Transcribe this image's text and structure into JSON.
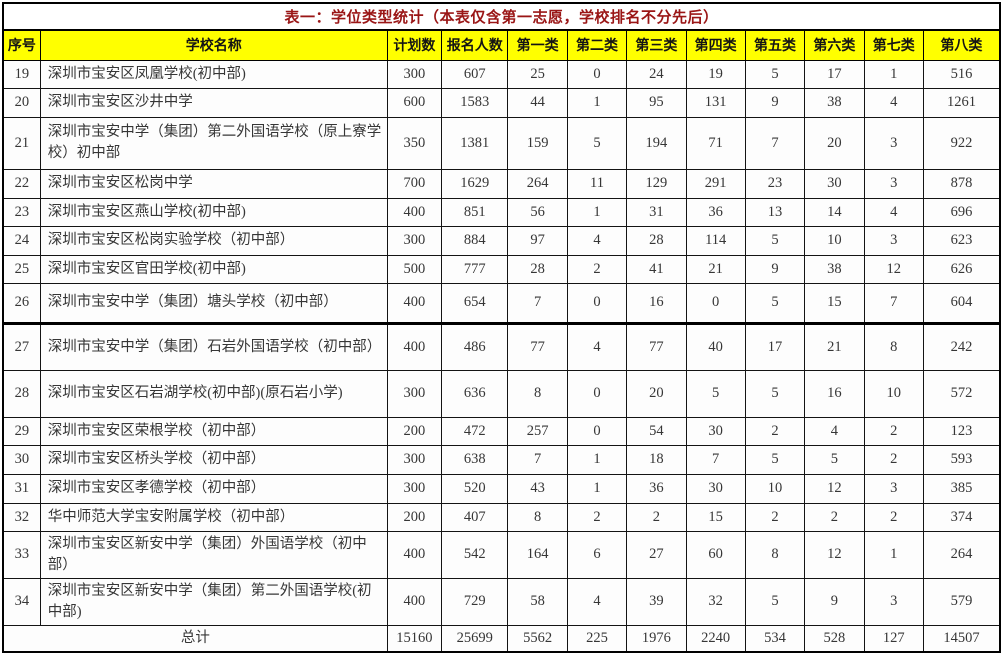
{
  "title": "表一：学位类型统计（本表仅含第一志愿，学校排名不分先后）",
  "columns": [
    "序号",
    "学校名称",
    "计划数",
    "报名人数",
    "第一类",
    "第二类",
    "第三类",
    "第四类",
    "第五类",
    "第六类",
    "第七类",
    "第八类"
  ],
  "colors": {
    "header_bg": "#ffff00",
    "title_text": "#9a1616",
    "border": "#000000",
    "cell_text": "#363636"
  },
  "rows": [
    {
      "no": "19",
      "school": "深圳市宝安区凤凰学校(初中部)",
      "plan": "300",
      "applicants": "607",
      "cats": [
        "25",
        "0",
        "24",
        "19",
        "5",
        "17",
        "1",
        "516"
      ]
    },
    {
      "no": "20",
      "school": "深圳市宝安区沙井中学",
      "plan": "600",
      "applicants": "1583",
      "cats": [
        "44",
        "1",
        "95",
        "131",
        "9",
        "38",
        "4",
        "1261"
      ]
    },
    {
      "no": "21",
      "school": "深圳市宝安中学（集团）第二外国语学校（原上寮学校）初中部",
      "plan": "350",
      "applicants": "1381",
      "cats": [
        "159",
        "5",
        "194",
        "71",
        "7",
        "20",
        "3",
        "922"
      ]
    },
    {
      "no": "22",
      "school": "深圳市宝安区松岗中学",
      "plan": "700",
      "applicants": "1629",
      "cats": [
        "264",
        "11",
        "129",
        "291",
        "23",
        "30",
        "3",
        "878"
      ]
    },
    {
      "no": "23",
      "school": "深圳市宝安区燕山学校(初中部)",
      "plan": "400",
      "applicants": "851",
      "cats": [
        "56",
        "1",
        "31",
        "36",
        "13",
        "14",
        "4",
        "696"
      ]
    },
    {
      "no": "24",
      "school": "深圳市宝安区松岗实验学校（初中部）",
      "plan": "300",
      "applicants": "884",
      "cats": [
        "97",
        "4",
        "28",
        "114",
        "5",
        "10",
        "3",
        "623"
      ]
    },
    {
      "no": "25",
      "school": "深圳市宝安区官田学校(初中部)",
      "plan": "500",
      "applicants": "777",
      "cats": [
        "28",
        "2",
        "41",
        "21",
        "9",
        "38",
        "12",
        "626"
      ]
    },
    {
      "no": "26",
      "school": "深圳市宝安中学（集团）塘头学校（初中部）",
      "plan": "400",
      "applicants": "654",
      "cats": [
        "7",
        "0",
        "16",
        "0",
        "5",
        "15",
        "7",
        "604"
      ]
    },
    {
      "no": "27",
      "school": "深圳市宝安中学（集团）石岩外国语学校（初中部）",
      "plan": "400",
      "applicants": "486",
      "cats": [
        "77",
        "4",
        "77",
        "40",
        "17",
        "21",
        "8",
        "242"
      ]
    },
    {
      "no": "28",
      "school": "深圳市宝安区石岩湖学校(初中部)(原石岩小学)",
      "plan": "300",
      "applicants": "636",
      "cats": [
        "8",
        "0",
        "20",
        "5",
        "5",
        "16",
        "10",
        "572"
      ]
    },
    {
      "no": "29",
      "school": "深圳市宝安区荣根学校（初中部）",
      "plan": "200",
      "applicants": "472",
      "cats": [
        "257",
        "0",
        "54",
        "30",
        "2",
        "4",
        "2",
        "123"
      ]
    },
    {
      "no": "30",
      "school": "深圳市宝安区桥头学校（初中部）",
      "plan": "300",
      "applicants": "638",
      "cats": [
        "7",
        "1",
        "18",
        "7",
        "5",
        "5",
        "2",
        "593"
      ]
    },
    {
      "no": "31",
      "school": "深圳市宝安区孝德学校（初中部）",
      "plan": "300",
      "applicants": "520",
      "cats": [
        "43",
        "1",
        "36",
        "30",
        "10",
        "12",
        "3",
        "385"
      ]
    },
    {
      "no": "32",
      "school": "华中师范大学宝安附属学校（初中部）",
      "plan": "200",
      "applicants": "407",
      "cats": [
        "8",
        "2",
        "2",
        "15",
        "2",
        "2",
        "2",
        "374"
      ]
    },
    {
      "no": "33",
      "school": "深圳市宝安区新安中学（集团）外国语学校（初中部）",
      "plan": "400",
      "applicants": "542",
      "cats": [
        "164",
        "6",
        "27",
        "60",
        "8",
        "12",
        "1",
        "264"
      ]
    },
    {
      "no": "34",
      "school": "深圳市宝安区新安中学（集团）第二外国语学校(初中部)",
      "plan": "400",
      "applicants": "729",
      "cats": [
        "58",
        "4",
        "39",
        "32",
        "5",
        "9",
        "3",
        "579"
      ]
    }
  ],
  "footer": {
    "label": "总计",
    "plan": "15160",
    "applicants": "25699",
    "cats": [
      "5562",
      "225",
      "1976",
      "2240",
      "534",
      "528",
      "127",
      "14507"
    ]
  }
}
